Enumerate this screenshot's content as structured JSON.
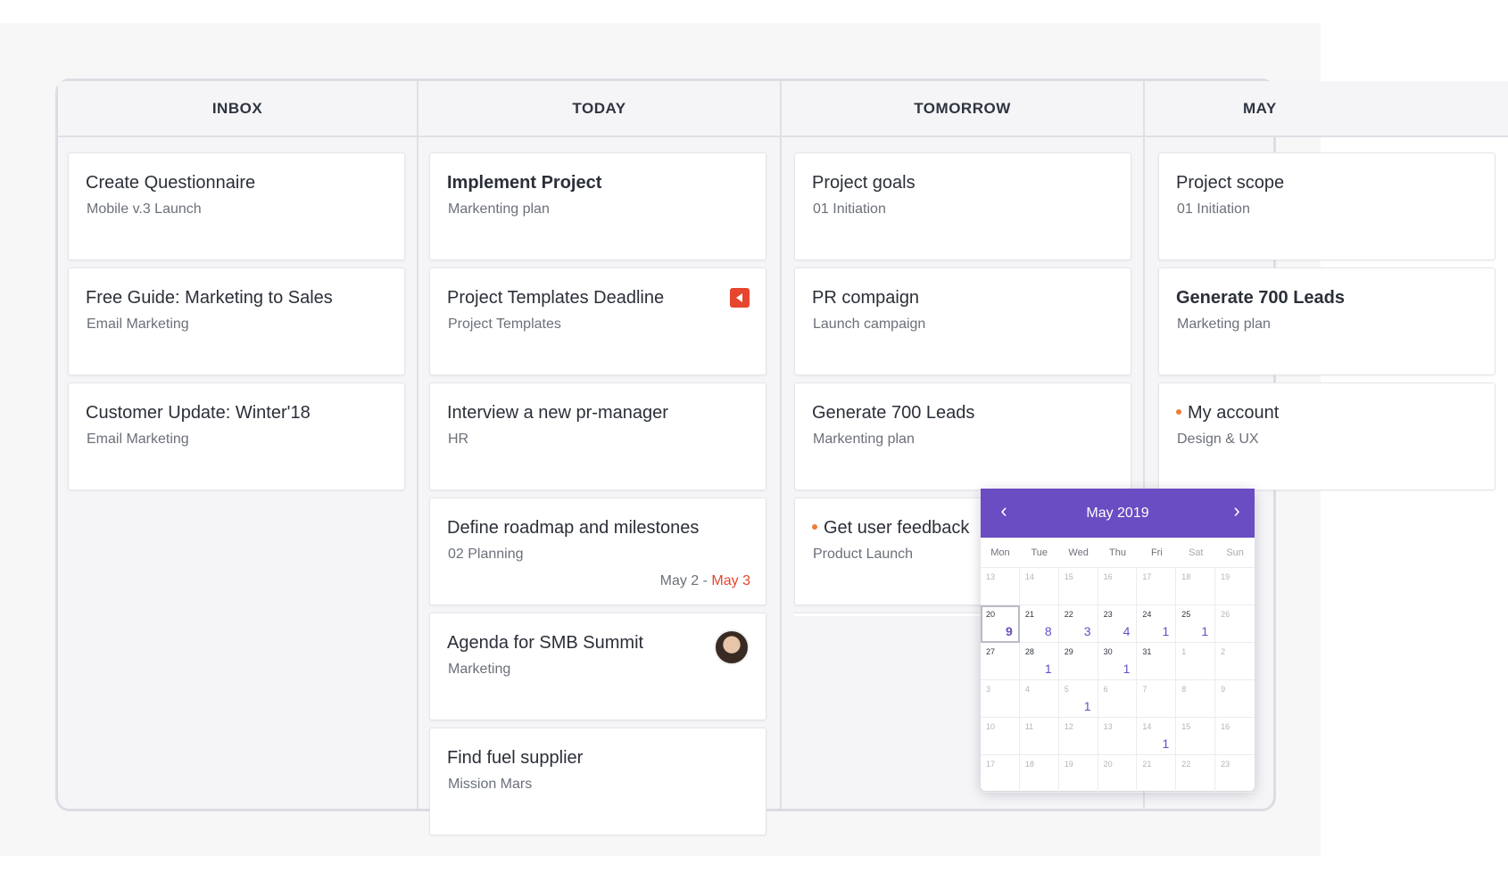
{
  "columns": [
    {
      "title": "INBOX",
      "cards": [
        {
          "title": "Create Questionnaire",
          "subtitle": "Mobile v.3 Launch"
        },
        {
          "title": "Free Guide: Marketing to Sales",
          "subtitle": "Email Marketing"
        },
        {
          "title": "Customer Update: Winter'18",
          "subtitle": "Email Marketing"
        }
      ]
    },
    {
      "title": "TODAY",
      "cards": [
        {
          "title": "Implement Project",
          "subtitle": "Markenting plan"
        },
        {
          "title": "Project Templates Deadline",
          "subtitle": "Project Templates",
          "icon": "priority-flag-icon"
        },
        {
          "title": "Interview a new pr-manager",
          "subtitle": "HR"
        },
        {
          "title": "Define roadmap and milestones",
          "subtitle": "02 Planning",
          "date_start": "May 2",
          "date_separator": " - ",
          "date_end": "May 3"
        },
        {
          "title": "Agenda for SMB Summit",
          "subtitle": "Marketing",
          "icon": "avatar"
        },
        {
          "title": "Find fuel supplier",
          "subtitle": "Mission Mars"
        }
      ]
    },
    {
      "title": "TOMORROW",
      "cards": [
        {
          "title": "Project goals",
          "subtitle": "01 Initiation"
        },
        {
          "title": "PR compaign",
          "subtitle": "Launch campaign"
        },
        {
          "title": "Generate 700 Leads",
          "subtitle": "Markenting plan"
        },
        {
          "title": "Get user feedback",
          "subtitle": "Product Launch",
          "status_dot": "#f07c35"
        }
      ]
    },
    {
      "title": "MAY",
      "cards": [
        {
          "title": "Project scope",
          "subtitle": "01 Initiation"
        },
        {
          "title": "Generate 700 Leads",
          "subtitle": "Marketing plan"
        },
        {
          "title": "My account",
          "subtitle": "Design & UX",
          "status_dot": "#f07c35"
        }
      ]
    }
  ],
  "calendar": {
    "month_label": "May 2019",
    "prev_icon": "chevron-left-icon",
    "next_icon": "chevron-right-icon",
    "weekdays": [
      "Mon",
      "Tue",
      "Wed",
      "Thu",
      "Fri",
      "Sat",
      "Sun"
    ],
    "weeks": [
      [
        {
          "day": "13"
        },
        {
          "day": "14"
        },
        {
          "day": "15"
        },
        {
          "day": "16"
        },
        {
          "day": "17"
        },
        {
          "day": "18"
        },
        {
          "day": "19"
        }
      ],
      [
        {
          "day": "20",
          "count": "9",
          "today": true
        },
        {
          "day": "21",
          "count": "8"
        },
        {
          "day": "22",
          "count": "3"
        },
        {
          "day": "23",
          "count": "4"
        },
        {
          "day": "24",
          "count": "1"
        },
        {
          "day": "25",
          "count": "1"
        },
        {
          "day": "26"
        }
      ],
      [
        {
          "day": "27"
        },
        {
          "day": "28",
          "count": "1"
        },
        {
          "day": "29"
        },
        {
          "day": "30",
          "count": "1"
        },
        {
          "day": "31"
        },
        {
          "day": "1"
        },
        {
          "day": "2"
        }
      ],
      [
        {
          "day": "3"
        },
        {
          "day": "4"
        },
        {
          "day": "5",
          "count": "1"
        },
        {
          "day": "6"
        },
        {
          "day": "7"
        },
        {
          "day": "8"
        },
        {
          "day": "9"
        }
      ],
      [
        {
          "day": "10"
        },
        {
          "day": "11"
        },
        {
          "day": "12"
        },
        {
          "day": "13"
        },
        {
          "day": "14",
          "count": "1"
        },
        {
          "day": "15"
        },
        {
          "day": "16"
        }
      ],
      [
        {
          "day": "17"
        },
        {
          "day": "18"
        },
        {
          "day": "19"
        },
        {
          "day": "20"
        },
        {
          "day": "21"
        },
        {
          "day": "22"
        },
        {
          "day": "23"
        }
      ]
    ]
  },
  "colors": {
    "accent": "#6a4cc3",
    "due_date": "#e5462d",
    "status_dot": "#f07c35",
    "priority_flag": "#e5462d"
  }
}
